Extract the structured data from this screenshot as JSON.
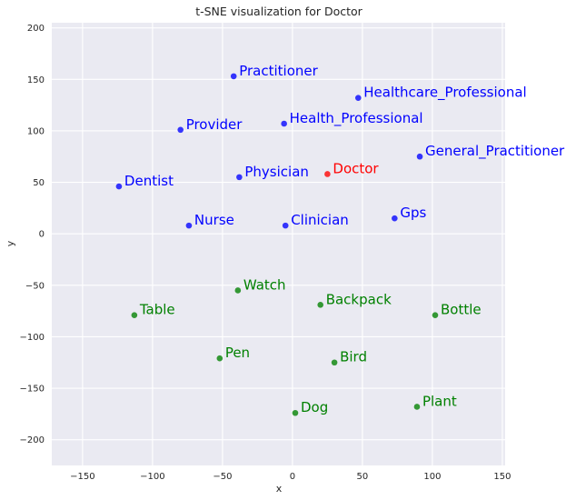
{
  "chart_data": {
    "type": "scatter",
    "title": "t-SNE visualization for Doctor",
    "xlabel": "x",
    "ylabel": "y",
    "xlim": [
      -172,
      152
    ],
    "ylim": [
      -225,
      205
    ],
    "xticks": [
      -150,
      -100,
      -50,
      0,
      50,
      100,
      150
    ],
    "yticks": [
      200,
      150,
      100,
      50,
      0,
      -50,
      -100,
      -150,
      -200
    ],
    "xtick_labels": [
      "−150",
      "−100",
      "−50",
      "0",
      "50",
      "100",
      "150"
    ],
    "ytick_labels": [
      "200",
      "150",
      "100",
      "50",
      "0",
      "−50",
      "−100",
      "−150",
      "−200"
    ],
    "grid": true,
    "background": "#eaeaf2",
    "colors": {
      "blue": "#0000ff",
      "red": "#ff0000",
      "green": "#008000"
    },
    "points": [
      {
        "label": "Practitioner",
        "x": -42,
        "y": 153,
        "color": "blue"
      },
      {
        "label": "Healthcare_Professional",
        "x": 47,
        "y": 132,
        "color": "blue"
      },
      {
        "label": "Provider",
        "x": -80,
        "y": 101,
        "color": "blue"
      },
      {
        "label": "Health_Professional",
        "x": -6,
        "y": 107,
        "color": "blue"
      },
      {
        "label": "General_Practitioner",
        "x": 91,
        "y": 75,
        "color": "blue"
      },
      {
        "label": "Dentist",
        "x": -124,
        "y": 46,
        "color": "blue"
      },
      {
        "label": "Physician",
        "x": -38,
        "y": 55,
        "color": "blue"
      },
      {
        "label": "Doctor",
        "x": 25,
        "y": 58,
        "color": "red"
      },
      {
        "label": "Nurse",
        "x": -74,
        "y": 8,
        "color": "blue"
      },
      {
        "label": "Clinician",
        "x": -5,
        "y": 8,
        "color": "blue"
      },
      {
        "label": "Gps",
        "x": 73,
        "y": 15,
        "color": "blue"
      },
      {
        "label": "Watch",
        "x": -39,
        "y": -55,
        "color": "green"
      },
      {
        "label": "Backpack",
        "x": 20,
        "y": -69,
        "color": "green"
      },
      {
        "label": "Table",
        "x": -113,
        "y": -79,
        "color": "green"
      },
      {
        "label": "Bottle",
        "x": 102,
        "y": -79,
        "color": "green"
      },
      {
        "label": "Pen",
        "x": -52,
        "y": -121,
        "color": "green"
      },
      {
        "label": "Bird",
        "x": 30,
        "y": -125,
        "color": "green"
      },
      {
        "label": "Dog",
        "x": 2,
        "y": -174,
        "color": "green"
      },
      {
        "label": "Plant",
        "x": 89,
        "y": -168,
        "color": "green"
      }
    ]
  }
}
